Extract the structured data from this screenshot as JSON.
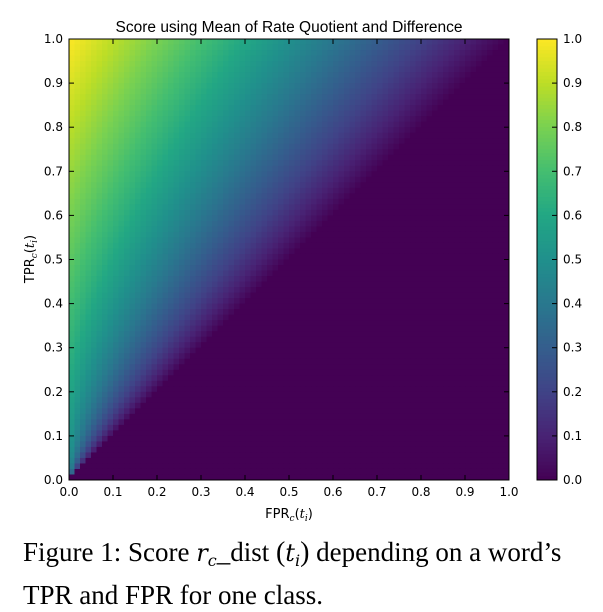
{
  "chart_data": {
    "type": "heatmap",
    "title": "Score using Mean of Rate Quotient and Difference",
    "xlabel": "FPR_c(t_i)",
    "xlabel_parts": {
      "base": "FPR",
      "sub": "c",
      "arg": "t",
      "arg_sub": "i"
    },
    "ylabel": "TPR_c(t_i)",
    "ylabel_parts": {
      "base": "TPR",
      "sub": "c",
      "arg": "t",
      "arg_sub": "i"
    },
    "xlim": [
      0.0,
      1.0
    ],
    "ylim": [
      0.0,
      1.0
    ],
    "x_ticks": [
      "0.0",
      "0.1",
      "0.2",
      "0.3",
      "0.4",
      "0.5",
      "0.6",
      "0.7",
      "0.8",
      "0.9",
      "1.0"
    ],
    "y_ticks": [
      "0.0",
      "0.1",
      "0.2",
      "0.3",
      "0.4",
      "0.5",
      "0.6",
      "0.7",
      "0.8",
      "0.9",
      "1.0"
    ],
    "colorbar_ticks": [
      "0.0",
      "0.1",
      "0.2",
      "0.3",
      "0.4",
      "0.5",
      "0.6",
      "0.7",
      "0.8",
      "0.9",
      "1.0"
    ],
    "colorbar_range": [
      0.0,
      1.0
    ],
    "colormap": "viridis",
    "formula": "score = 0 if TPR <= FPR else ((1 - FPR/TPR) + (TPR - FPR)) / 2",
    "grid": false,
    "legend": "none"
  },
  "caption": {
    "prefix": "Figure 1: Score",
    "math_var": "r",
    "math_sub": "c",
    "math_suffix": "_dist",
    "paren_open": "(",
    "paren_var": "t",
    "paren_sub": "i",
    "paren_close": ")",
    "suffix_line1": "depending on a word’s",
    "line2": "TPR and FPR for one class."
  }
}
